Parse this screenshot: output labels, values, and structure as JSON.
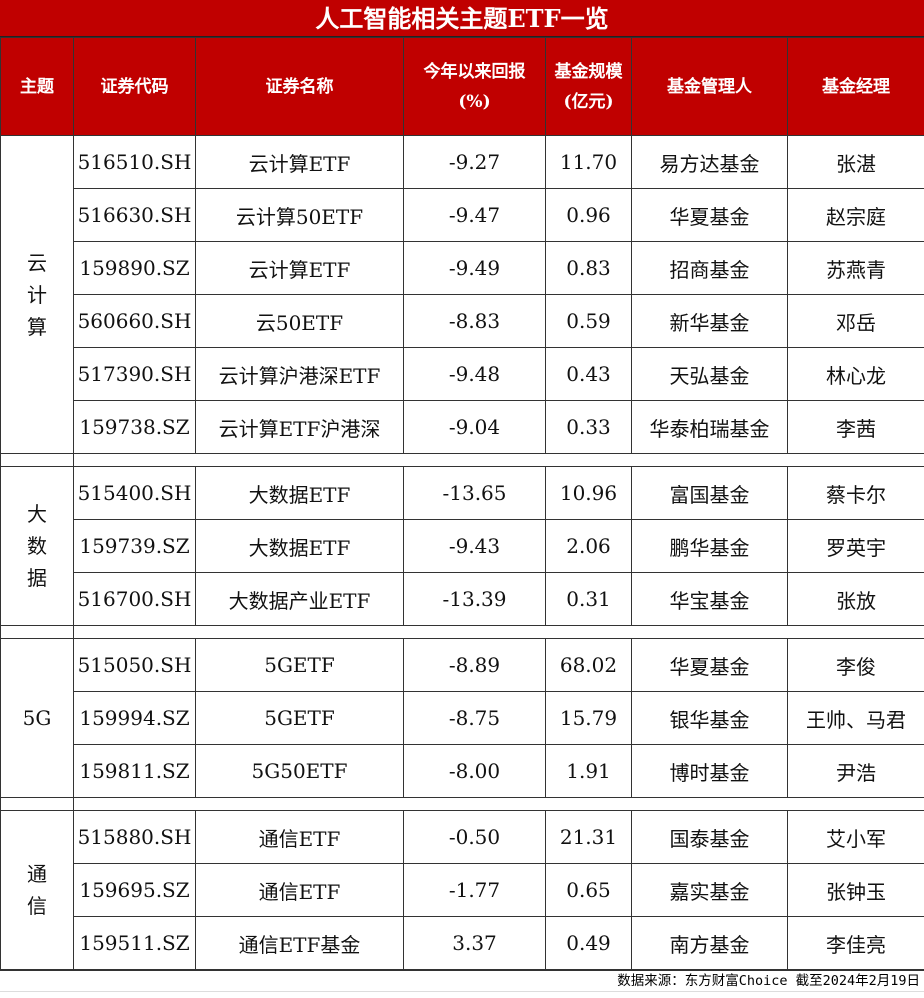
{
  "title": "人工智能相关主题ETF一览",
  "headers": [
    "主题",
    "证券代码",
    "证券名称",
    "今年以来回报\n(%)",
    "基金规模\n(亿元)",
    "基金管理人",
    "基金经理"
  ],
  "groups": [
    {
      "theme": "云计算",
      "rows": [
        {
          "code": "516510.SH",
          "name": "云计算ETF",
          "return": "-9.27",
          "size": "11.70",
          "manager": "易方达基金",
          "fund_manager": "张湛"
        },
        {
          "code": "516630.SH",
          "name": "云计算50ETF",
          "return": "-9.47",
          "size": "0.96",
          "manager": "华夏基金",
          "fund_manager": "赵宗庭"
        },
        {
          "code": "159890.SZ",
          "name": "云计算ETF",
          "return": "-9.49",
          "size": "0.83",
          "manager": "招商基金",
          "fund_manager": "苏燕青"
        },
        {
          "code": "560660.SH",
          "name": "云50ETF",
          "return": "-8.83",
          "size": "0.59",
          "manager": "新华基金",
          "fund_manager": "邓岳"
        },
        {
          "code": "517390.SH",
          "name": "云计算沪港深ETF",
          "return": "-9.48",
          "size": "0.43",
          "manager": "天弘基金",
          "fund_manager": "林心龙"
        },
        {
          "code": "159738.SZ",
          "name": "云计算ETF沪港深",
          "return": "-9.04",
          "size": "0.33",
          "manager": "华泰柏瑞基金",
          "fund_manager": "李茜"
        }
      ]
    },
    {
      "theme": "大数据",
      "rows": [
        {
          "code": "515400.SH",
          "name": "大数据ETF",
          "return": "-13.65",
          "size": "10.96",
          "manager": "富国基金",
          "fund_manager": "蔡卡尔"
        },
        {
          "code": "159739.SZ",
          "name": "大数据ETF",
          "return": "-9.43",
          "size": "2.06",
          "manager": "鹏华基金",
          "fund_manager": "罗英宇"
        },
        {
          "code": "516700.SH",
          "name": "大数据产业ETF",
          "return": "-13.39",
          "size": "0.31",
          "manager": "华宝基金",
          "fund_manager": "张放"
        }
      ]
    },
    {
      "theme": "5G",
      "rows": [
        {
          "code": "515050.SH",
          "name": "5GETF",
          "return": "-8.89",
          "size": "68.02",
          "manager": "华夏基金",
          "fund_manager": "李俊"
        },
        {
          "code": "159994.SZ",
          "name": "5GETF",
          "return": "-8.75",
          "size": "15.79",
          "manager": "银华基金",
          "fund_manager": "王帅、马君"
        },
        {
          "code": "159811.SZ",
          "name": "5G50ETF",
          "return": "-8.00",
          "size": "1.91",
          "manager": "博时基金",
          "fund_manager": "尹浩"
        }
      ]
    },
    {
      "theme": "通信",
      "rows": [
        {
          "code": "515880.SH",
          "name": "通信ETF",
          "return": "-0.50",
          "size": "21.31",
          "manager": "国泰基金",
          "fund_manager": "艾小军"
        },
        {
          "code": "159695.SZ",
          "name": "通信ETF",
          "return": "-1.77",
          "size": "0.65",
          "manager": "嘉实基金",
          "fund_manager": "张钟玉"
        },
        {
          "code": "159511.SZ",
          "name": "通信ETF基金",
          "return": "3.37",
          "size": "0.49",
          "manager": "南方基金",
          "fund_manager": "李佳亮"
        }
      ]
    }
  ],
  "footer": "数据来源：东方财富Choice 截至2024年2月19日",
  "colors": {
    "header_bg": "#c00000",
    "header_text": "#ffffff"
  }
}
